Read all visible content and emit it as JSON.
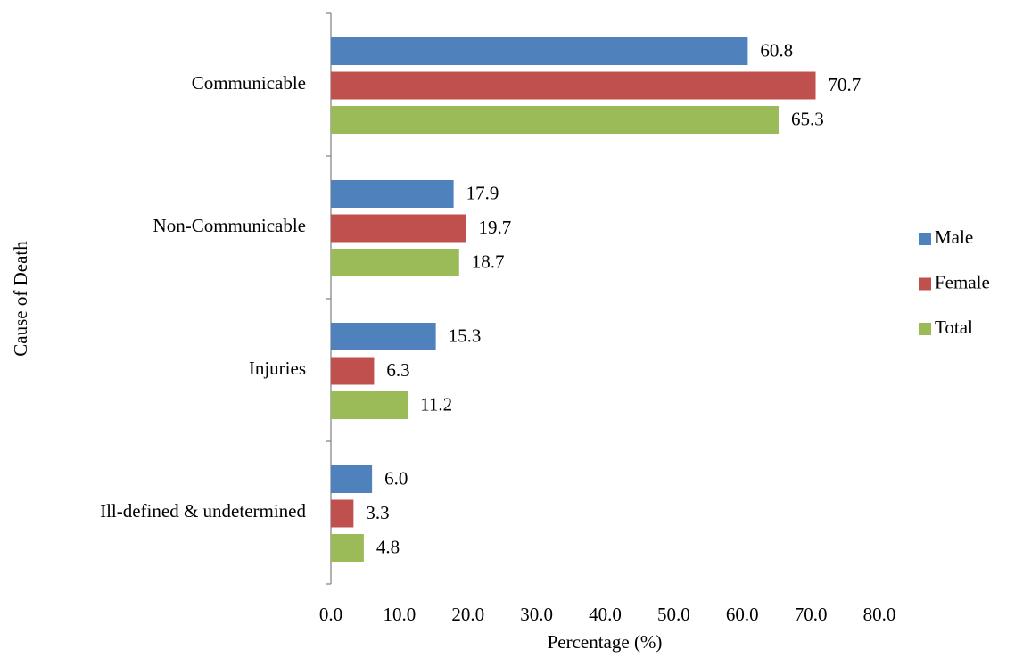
{
  "chart_data": {
    "type": "bar",
    "orientation": "horizontal",
    "xlabel": "Percentage (%)",
    "ylabel": "Cause of Death",
    "categories": [
      "Communicable",
      "Non-Communicable",
      "Injuries",
      "Ill-defined & undetermined"
    ],
    "series": [
      {
        "name": "Male",
        "color": "#4f81bd",
        "values": [
          60.8,
          17.9,
          15.3,
          6.0
        ],
        "value_labels": [
          "60.8",
          "17.9",
          "15.3",
          "6.0"
        ]
      },
      {
        "name": "Female",
        "color": "#c0504d",
        "values": [
          70.7,
          19.7,
          6.3,
          3.3
        ],
        "value_labels": [
          "70.7",
          "19.7",
          "6.3",
          "3.3"
        ]
      },
      {
        "name": "Total",
        "color": "#9bbb59",
        "values": [
          65.3,
          18.7,
          11.2,
          4.8
        ],
        "value_labels": [
          "65.3",
          "18.7",
          "11.2",
          "4.8"
        ]
      }
    ],
    "xlim": [
      0,
      80
    ],
    "xticks": [
      {
        "value": 0,
        "label": "0.0"
      },
      {
        "value": 10,
        "label": "10.0"
      },
      {
        "value": 20,
        "label": "20.0"
      },
      {
        "value": 30,
        "label": "30.0"
      },
      {
        "value": 40,
        "label": "40.0"
      },
      {
        "value": 50,
        "label": "50.0"
      },
      {
        "value": 60,
        "label": "60.0"
      },
      {
        "value": 70,
        "label": "70.0"
      },
      {
        "value": 80,
        "label": "80.0"
      }
    ],
    "grid": false,
    "legend": "right"
  }
}
